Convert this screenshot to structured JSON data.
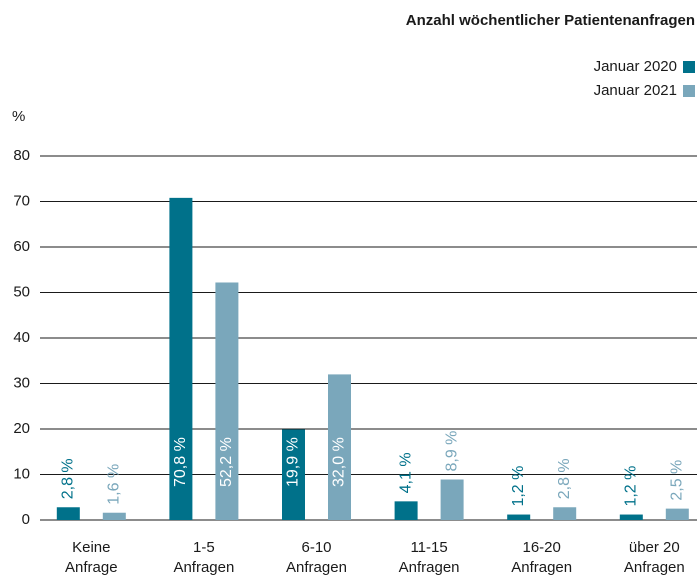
{
  "chart_data": {
    "type": "bar",
    "title": "Anzahl wöchentlicher Patientenanfragen",
    "y_label": "%",
    "categories": [
      "Keine\nAnfrage",
      "1-5\nAnfragen",
      "6-10\nAnfragen",
      "11-15\nAnfragen",
      "16-20\nAnfragen",
      "über 20\nAnfragen"
    ],
    "series": [
      {
        "name": "Januar 2020",
        "color": "#00718a",
        "values": [
          2.8,
          70.8,
          19.9,
          4.1,
          1.2,
          1.2
        ],
        "value_labels": [
          "2,8 %",
          "70,8 %",
          "19,9 %",
          "4,1 %",
          "1,2 %",
          "1,2 %"
        ]
      },
      {
        "name": "Januar 2021",
        "color": "#7aa7bb",
        "values": [
          1.6,
          52.2,
          32.0,
          8.9,
          2.8,
          2.5
        ],
        "value_labels": [
          "1,6 %",
          "52,2 %",
          "32,0 %",
          "8,9 %",
          "2,8 %",
          "2,5 %"
        ]
      }
    ],
    "ylim": [
      0,
      80
    ],
    "yticks": [
      0,
      10,
      20,
      30,
      40,
      50,
      60,
      70,
      80
    ],
    "grid": true,
    "legend": "top-right"
  }
}
